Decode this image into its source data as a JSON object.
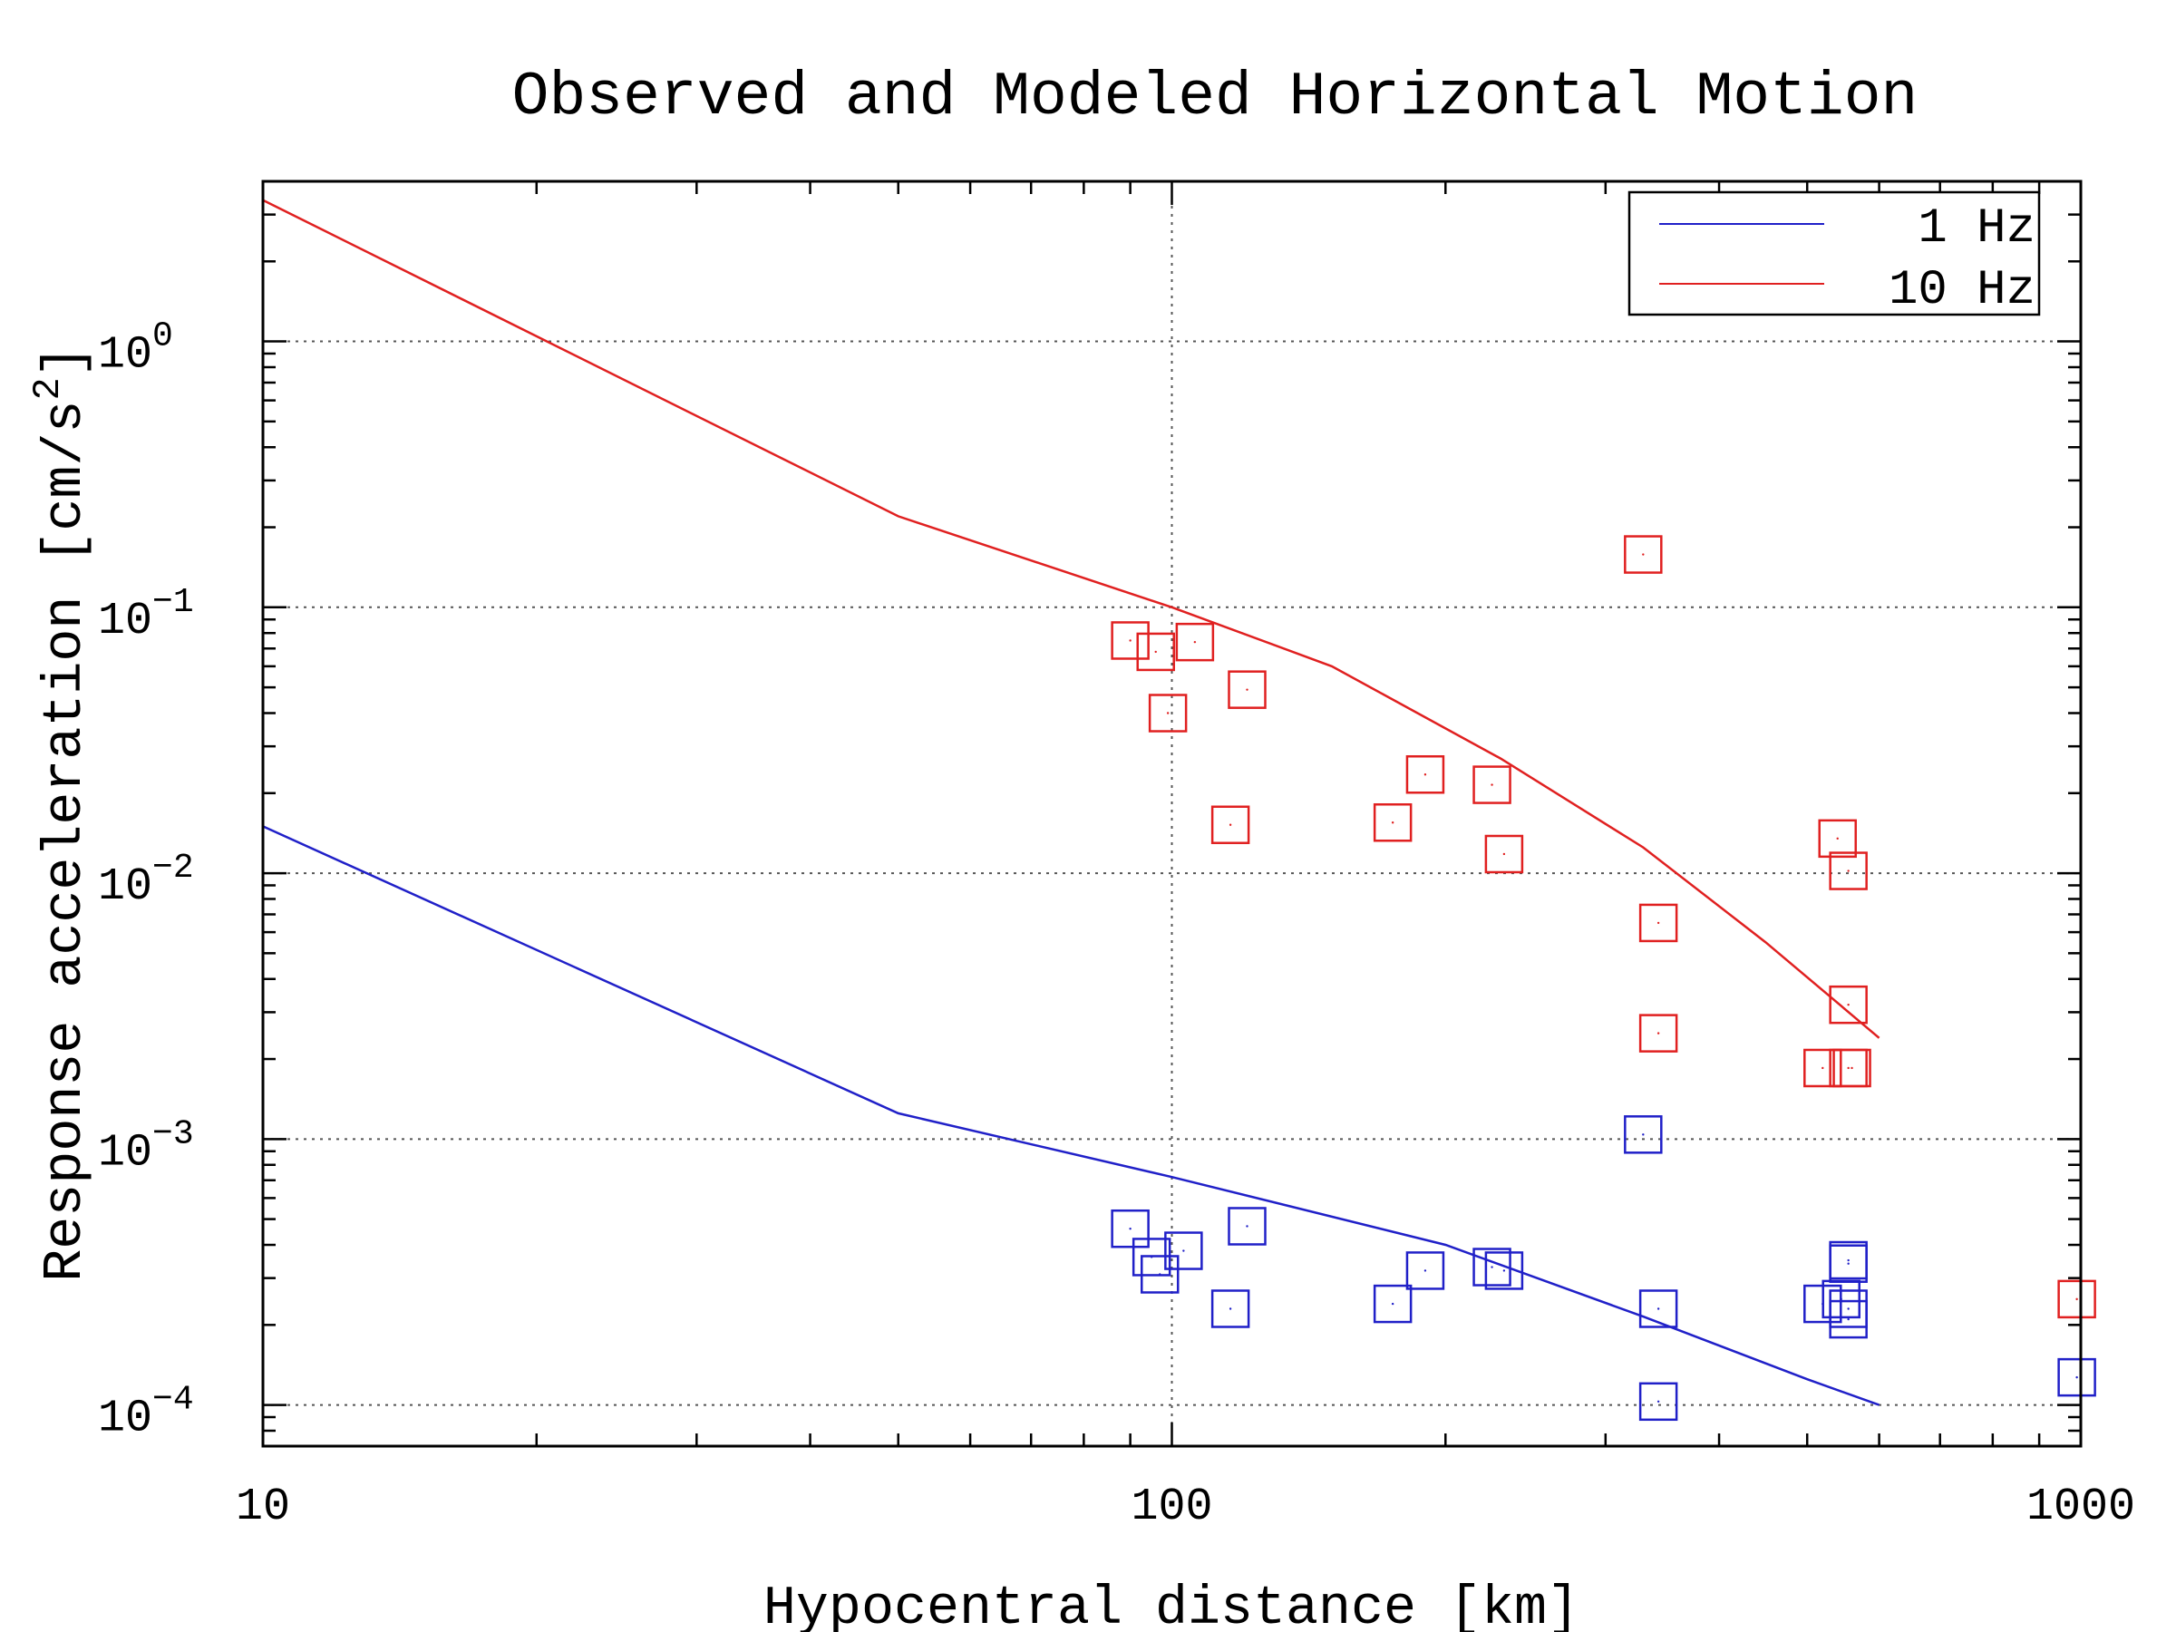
{
  "chart_data": {
    "type": "line",
    "title": "Observed and Modeled Horizontal Motion",
    "xlabel": "Hypocentral distance [km]",
    "ylabel_main": "Response acceleration [cm/s",
    "ylabel_sup": "2",
    "ylabel_end": "]",
    "x_scale": "log",
    "y_scale": "log",
    "xlim": [
      10,
      1000
    ],
    "ylim": [
      7e-05,
      4
    ],
    "grid": true,
    "legend_position": "top-right",
    "x_ticks": [
      {
        "value": 10,
        "label": "10"
      },
      {
        "value": 100,
        "label": "100"
      },
      {
        "value": 1000,
        "label": "1000"
      }
    ],
    "y_ticks": [
      {
        "value": 1,
        "base": "10",
        "exp": "0"
      },
      {
        "value": 0.1,
        "base": "10",
        "exp": "−1"
      },
      {
        "value": 0.01,
        "base": "10",
        "exp": "−2"
      },
      {
        "value": 0.001,
        "base": "10",
        "exp": "−3"
      },
      {
        "value": 0.0001,
        "base": "10",
        "exp": "−4"
      }
    ],
    "series": [
      {
        "name": "1 Hz",
        "color": "#2020c8",
        "line": [
          [
            10,
            0.015
          ],
          [
            50,
            0.00125
          ],
          [
            100,
            0.00072
          ],
          [
            200,
            0.0004
          ],
          [
            330,
            0.000215
          ],
          [
            500,
            0.000125
          ],
          [
            600,
            0.0001
          ]
        ],
        "points": [
          [
            90,
            0.00046
          ],
          [
            95,
            0.00036
          ],
          [
            97,
            0.00031
          ],
          [
            103,
            0.00038
          ],
          [
            116,
            0.00023
          ],
          [
            121,
            0.00047
          ],
          [
            175,
            0.00024
          ],
          [
            190,
            0.00032
          ],
          [
            225,
            0.00033
          ],
          [
            232,
            0.00032
          ],
          [
            330,
            0.00104
          ],
          [
            343,
            0.00023
          ],
          [
            343,
            0.000103
          ],
          [
            520,
            0.00024
          ],
          [
            545,
            0.00025
          ],
          [
            555,
            0.00035
          ],
          [
            555,
            0.00034
          ],
          [
            555,
            0.00023
          ],
          [
            555,
            0.00021
          ],
          [
            990,
            0.000127
          ]
        ]
      },
      {
        "name": "10 Hz",
        "color": "#e02020",
        "line": [
          [
            10,
            3.4
          ],
          [
            50,
            0.22
          ],
          [
            100,
            0.1
          ],
          [
            150,
            0.06
          ],
          [
            230,
            0.027
          ],
          [
            330,
            0.0125
          ],
          [
            450,
            0.0055
          ],
          [
            600,
            0.0024
          ]
        ],
        "points": [
          [
            90,
            0.075
          ],
          [
            96,
            0.068
          ],
          [
            106,
            0.074
          ],
          [
            99,
            0.04
          ],
          [
            121,
            0.049
          ],
          [
            116,
            0.0152
          ],
          [
            175,
            0.0155
          ],
          [
            190,
            0.0235
          ],
          [
            225,
            0.0215
          ],
          [
            232,
            0.0118
          ],
          [
            330,
            0.158
          ],
          [
            343,
            0.0065
          ],
          [
            343,
            0.0025
          ],
          [
            540,
            0.0135
          ],
          [
            555,
            0.0102
          ],
          [
            555,
            0.0032
          ],
          [
            520,
            0.00185
          ],
          [
            555,
            0.00185
          ],
          [
            560,
            0.00185
          ],
          [
            990,
            0.00025
          ]
        ]
      }
    ]
  }
}
